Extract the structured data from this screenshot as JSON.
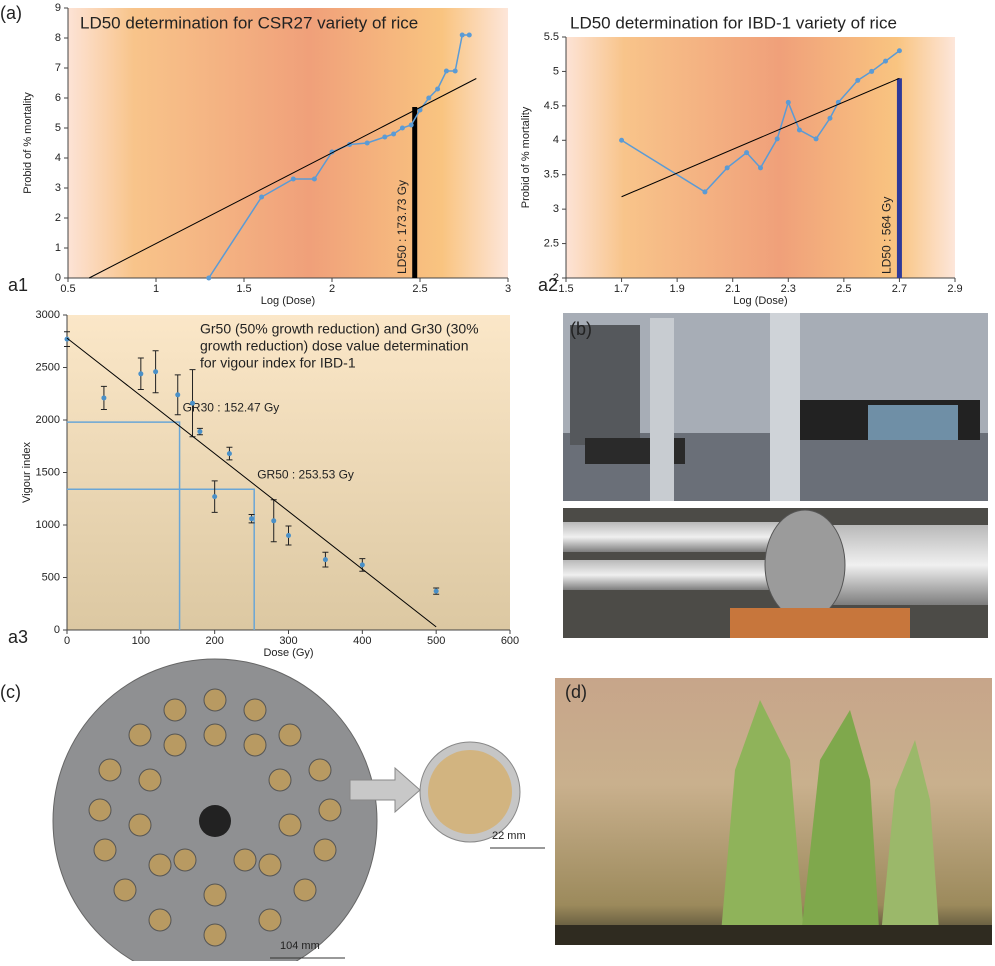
{
  "chart_data": [
    {
      "type": "line",
      "title": "LD50 determination for CSR27 variety of rice",
      "x_label": "Log (Dose)",
      "y_label": "Probid of % mortality",
      "xlim": [
        0.5,
        3
      ],
      "xticks": [
        0.5,
        1,
        1.5,
        2,
        2.5,
        3
      ],
      "ylim": [
        0,
        9
      ],
      "yticks": [
        0,
        1,
        2,
        3,
        4,
        5,
        6,
        7,
        8,
        9
      ],
      "series": [
        {
          "color": "#5b9bd5",
          "x": [
            1.3,
            1.6,
            1.78,
            1.9,
            2.0,
            2.1,
            2.2,
            2.3,
            2.35,
            2.4,
            2.45,
            2.5,
            2.55,
            2.6,
            2.65,
            2.7,
            2.74,
            2.78
          ],
          "values": [
            0,
            2.7,
            3.3,
            3.3,
            4.2,
            4.45,
            4.5,
            4.7,
            4.8,
            5.0,
            5.1,
            5.6,
            6.0,
            6.3,
            6.9,
            6.9,
            8.1,
            8.1
          ]
        },
        {
          "color": "#000000",
          "x": [
            0.62,
            2.82
          ],
          "values": [
            0,
            6.65
          ]
        }
      ],
      "marker": {
        "x": 2.47,
        "value": 5.7,
        "label": "LD50 : 173.73 Gy",
        "color": "#000000"
      }
    },
    {
      "type": "line",
      "title": "LD50 determination for IBD-1 variety of rice",
      "x_label": "Log (Dose)",
      "y_label": "Probid of % mortality",
      "xlim": [
        1.5,
        2.9
      ],
      "xticks": [
        1.5,
        1.7,
        1.9,
        2.1,
        2.3,
        2.5,
        2.7,
        2.9
      ],
      "ylim": [
        2,
        5.5
      ],
      "yticks": [
        2,
        2.5,
        3,
        3.5,
        4,
        4.5,
        5,
        5.5
      ],
      "series": [
        {
          "color": "#5b9bd5",
          "x": [
            1.7,
            2.0,
            2.08,
            2.15,
            2.2,
            2.26,
            2.3,
            2.34,
            2.4,
            2.45,
            2.48,
            2.55,
            2.6,
            2.65,
            2.7
          ],
          "values": [
            4.0,
            3.25,
            3.6,
            3.82,
            3.6,
            4.02,
            4.55,
            4.15,
            4.02,
            4.32,
            4.55,
            4.87,
            5.0,
            5.15,
            5.3
          ]
        },
        {
          "color": "#000000",
          "x": [
            1.7,
            2.7
          ],
          "values": [
            3.18,
            4.9
          ]
        }
      ],
      "marker": {
        "x": 2.7,
        "value": 4.9,
        "label": "LD50 : 564 Gy",
        "color": "#2e3a9a"
      }
    },
    {
      "type": "scatter",
      "title": [
        "Gr50 (50% growth reduction) and Gr30 (30%",
        "growth reduction) dose value determination",
        "for vigour index for IBD-1"
      ],
      "x_label": "Dose (Gy)",
      "y_label": "Vigour index",
      "xlim": [
        0,
        600
      ],
      "xticks": [
        0,
        100,
        200,
        300,
        400,
        500,
        600
      ],
      "ylim": [
        0,
        3000
      ],
      "yticks": [
        0,
        500,
        1000,
        1500,
        2000,
        2500,
        3000
      ],
      "series": [
        {
          "color": "#4a90c8",
          "x": [
            0,
            50,
            100,
            120,
            150,
            170,
            180,
            200,
            220,
            250,
            280,
            300,
            350,
            400,
            500
          ],
          "values": [
            2770,
            2210,
            2440,
            2460,
            2240,
            2160,
            1890,
            1270,
            1680,
            1060,
            1040,
            900,
            670,
            620,
            370
          ],
          "errors": [
            70,
            110,
            150,
            200,
            190,
            320,
            30,
            150,
            60,
            40,
            200,
            90,
            70,
            60,
            30
          ]
        },
        {
          "color": "#000000",
          "x": [
            0,
            500
          ],
          "values": [
            2780,
            30
          ]
        }
      ],
      "references": [
        {
          "x": 152.47,
          "value": 1980,
          "label": "GR30 : 152.47 Gy",
          "color": "#6aa6d6"
        },
        {
          "x": 253.53,
          "value": 1340,
          "label": "GR50 : 253.53 Gy",
          "color": "#6aa6d6"
        }
      ]
    }
  ],
  "panels": [
    "(a)",
    "a1",
    "a2",
    "a3",
    "(b)",
    "(c)",
    "(d)"
  ],
  "scales": [
    "104 mm",
    "22 mm"
  ]
}
